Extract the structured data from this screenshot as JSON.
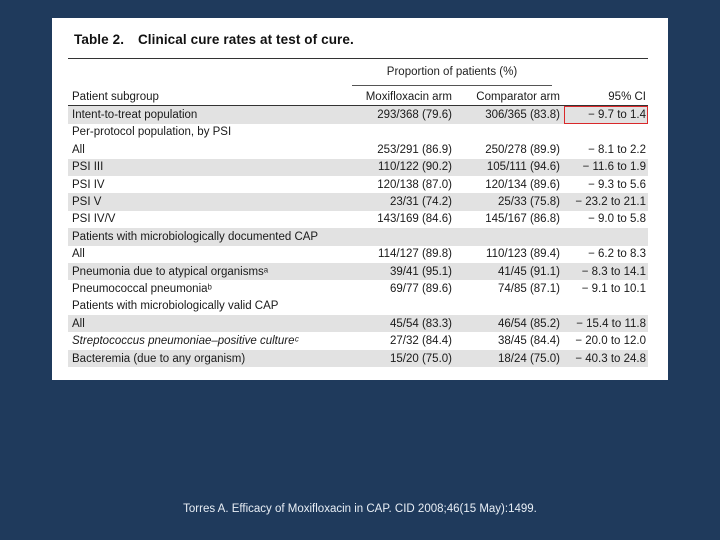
{
  "table": {
    "label": "Table 2.",
    "title": "Clinical cure rates at test of cure.",
    "group_header": "Proportion of patients (%)",
    "columns": [
      "Patient subgroup",
      "Moxifloxacin arm",
      "Comparator arm",
      "95% CI"
    ],
    "rows": [
      {
        "subgroup": "Intent-to-treat population",
        "moxi": "293/368 (79.6)",
        "comp": "306/365 (83.8)",
        "ci": "− 9.7 to 1.4",
        "shaded": true,
        "indent": false,
        "italic": false,
        "highlight": true
      },
      {
        "subgroup": "Per-protocol population, by PSI",
        "moxi": "",
        "comp": "",
        "ci": "",
        "shaded": false,
        "indent": false,
        "italic": false,
        "highlight": false
      },
      {
        "subgroup": "All",
        "moxi": "253/291 (86.9)",
        "comp": "250/278 (89.9)",
        "ci": "− 8.1 to 2.2",
        "shaded": false,
        "indent": true,
        "italic": false,
        "highlight": false
      },
      {
        "subgroup": "PSI III",
        "moxi": "110/122 (90.2)",
        "comp": "105/111 (94.6)",
        "ci": "− 11.6 to 1.9",
        "shaded": true,
        "indent": true,
        "italic": false,
        "highlight": false
      },
      {
        "subgroup": "PSI IV",
        "moxi": "120/138 (87.0)",
        "comp": "120/134 (89.6)",
        "ci": "− 9.3 to 5.6",
        "shaded": false,
        "indent": true,
        "italic": false,
        "highlight": false
      },
      {
        "subgroup": "PSI V",
        "moxi": "23/31 (74.2)",
        "comp": "25/33 (75.8)",
        "ci": "− 23.2 to 21.1",
        "shaded": true,
        "indent": true,
        "italic": false,
        "highlight": false
      },
      {
        "subgroup": "PSI IV/V",
        "moxi": "143/169 (84.6)",
        "comp": "145/167 (86.8)",
        "ci": "− 9.0 to 5.8",
        "shaded": false,
        "indent": true,
        "italic": false,
        "highlight": false
      },
      {
        "subgroup": "Patients with microbiologically documented CAP",
        "moxi": "",
        "comp": "",
        "ci": "",
        "shaded": true,
        "indent": false,
        "italic": false,
        "highlight": false
      },
      {
        "subgroup": "All",
        "moxi": "114/127 (89.8)",
        "comp": "110/123 (89.4)",
        "ci": "− 6.2 to 8.3",
        "shaded": false,
        "indent": true,
        "italic": false,
        "highlight": false
      },
      {
        "subgroup": "Pneumonia due to atypical organismsᵃ",
        "moxi": "39/41 (95.1)",
        "comp": "41/45 (91.1)",
        "ci": "− 8.3 to 14.1",
        "shaded": true,
        "indent": true,
        "italic": false,
        "highlight": false
      },
      {
        "subgroup": "Pneumococcal pneumoniaᵇ",
        "moxi": "69/77 (89.6)",
        "comp": "74/85 (87.1)",
        "ci": "− 9.1 to 10.1",
        "shaded": false,
        "indent": true,
        "italic": false,
        "highlight": false
      },
      {
        "subgroup": "Patients with microbiologically valid CAP",
        "moxi": "",
        "comp": "",
        "ci": "",
        "shaded": false,
        "indent": false,
        "italic": false,
        "highlight": false
      },
      {
        "subgroup": "All",
        "moxi": "45/54 (83.3)",
        "comp": "46/54 (85.2)",
        "ci": "− 15.4 to 11.8",
        "shaded": true,
        "indent": true,
        "italic": false,
        "highlight": false
      },
      {
        "subgroup": "Streptococcus pneumoniae–positive cultureᶜ",
        "moxi": "27/32 (84.4)",
        "comp": "38/45 (84.4)",
        "ci": "− 20.0 to 12.0",
        "shaded": false,
        "indent": true,
        "italic": true,
        "highlight": false
      },
      {
        "subgroup": "Bacteremia (due to any organism)",
        "moxi": "15/20 (75.0)",
        "comp": "18/24 (75.0)",
        "ci": "− 40.3 to 24.8",
        "shaded": true,
        "indent": true,
        "italic": false,
        "highlight": false
      }
    ]
  },
  "caption": "Torres A. Efficacy of Moxifloxacin in CAP. CID 2008;46(15 May):1499.",
  "colors": {
    "background": "#1f3a5c",
    "panel": "#ffffff",
    "row_shade": "#e2e2e2",
    "highlight_box": "#d9282a"
  }
}
